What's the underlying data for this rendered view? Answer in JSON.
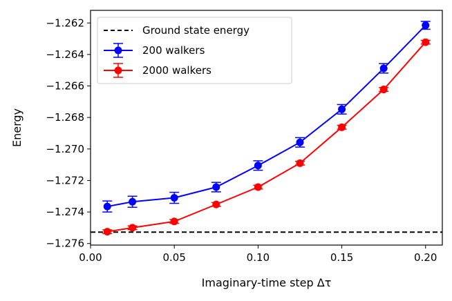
{
  "chart_data": {
    "type": "line",
    "title": "",
    "xlabel": "Imaginary-time step Δτ",
    "ylabel": "Energy",
    "xlim": [
      0.0,
      0.21
    ],
    "ylim": [
      -1.2761,
      -1.2612
    ],
    "xticks": [
      0.0,
      0.05,
      0.1,
      0.15,
      0.2
    ],
    "xtick_labels": [
      "0.00",
      "0.05",
      "0.10",
      "0.15",
      "0.20"
    ],
    "yticks": [
      -1.276,
      -1.274,
      -1.272,
      -1.27,
      -1.268,
      -1.266,
      -1.264,
      -1.262
    ],
    "ytick_labels": [
      "−1.276",
      "−1.274",
      "−1.272",
      "−1.270",
      "−1.268",
      "−1.266",
      "−1.264",
      "−1.262"
    ],
    "grid": false,
    "legend_position": "top-left",
    "reference_line": {
      "name": "Ground state energy",
      "y": -1.27528,
      "color": "#000000",
      "style": "dashed"
    },
    "series": [
      {
        "name": "200 walkers",
        "color": "#0000ff",
        "x": [
          0.01,
          0.025,
          0.05,
          0.075,
          0.1,
          0.125,
          0.15,
          0.175,
          0.2
        ],
        "y": [
          -1.27365,
          -1.27335,
          -1.2731,
          -1.27242,
          -1.27105,
          -1.26958,
          -1.26748,
          -1.26488,
          -1.26215
        ],
        "err": [
          0.00035,
          0.00035,
          0.00035,
          0.0003,
          0.0003,
          0.0003,
          0.0003,
          0.0003,
          0.00025
        ]
      },
      {
        "name": "2000 walkers",
        "color": "#ff0000",
        "x": [
          0.01,
          0.025,
          0.05,
          0.075,
          0.1,
          0.125,
          0.15,
          0.175,
          0.2
        ],
        "y": [
          -1.27525,
          -1.275,
          -1.2746,
          -1.27352,
          -1.27242,
          -1.2709,
          -1.26862,
          -1.26622,
          -1.26322
        ],
        "err": [
          0.00012,
          0.00012,
          0.00012,
          0.00012,
          0.00012,
          0.00012,
          0.00012,
          0.00012,
          0.00012
        ]
      }
    ]
  }
}
